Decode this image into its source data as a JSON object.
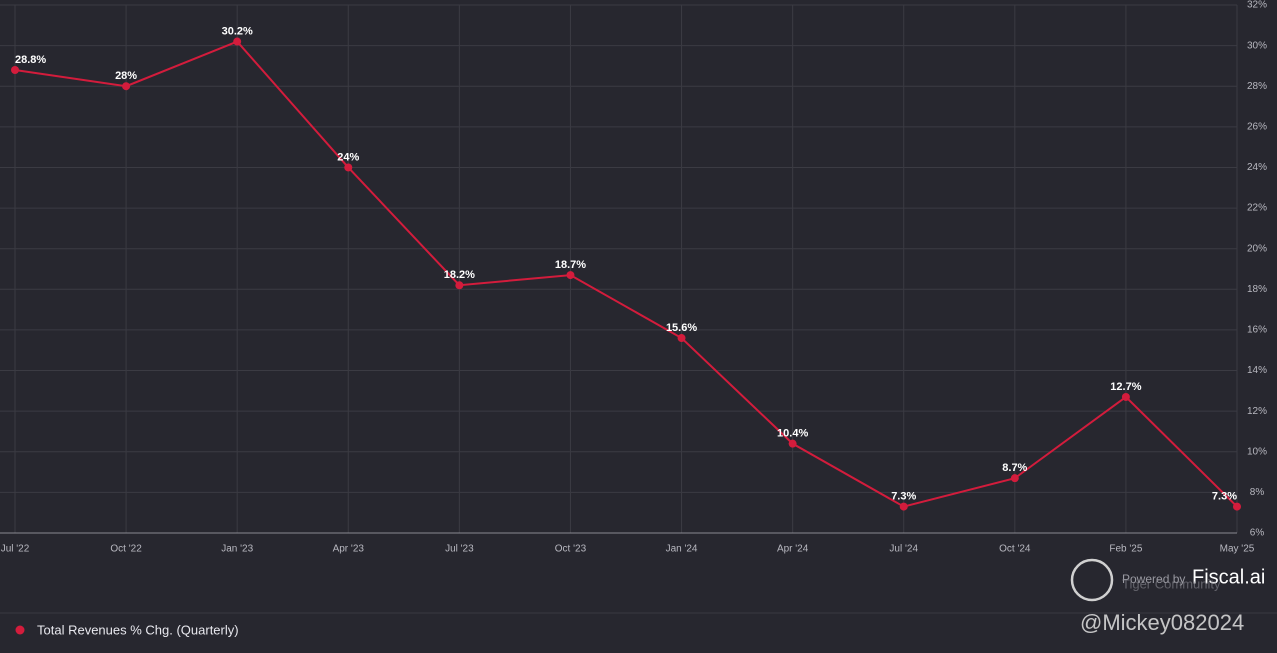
{
  "chart_data": {
    "type": "line",
    "categories": [
      "Jul '22",
      "Oct '22",
      "Jan '23",
      "Apr '23",
      "Jul '23",
      "Oct '23",
      "Jan '24",
      "Apr '24",
      "Jul '24",
      "Oct '24",
      "Feb '25",
      "May '25"
    ],
    "series": [
      {
        "name": "Total Revenues % Chg. (Quarterly)",
        "color": "#d31c3c",
        "values": [
          28.8,
          28,
          30.2,
          24,
          18.2,
          18.7,
          15.6,
          10.4,
          7.3,
          8.7,
          12.7,
          7.3
        ],
        "value_labels": [
          "28.8%",
          "28%",
          "30.2%",
          "24%",
          "18.2%",
          "18.7%",
          "15.6%",
          "10.4%",
          "7.3%",
          "8.7%",
          "12.7%",
          "7.3%"
        ]
      }
    ],
    "ylim": [
      6,
      32
    ],
    "yticks": [
      {
        "value": 6,
        "label": "6%"
      },
      {
        "value": 8,
        "label": "8%"
      },
      {
        "value": 10,
        "label": "10%"
      },
      {
        "value": 12,
        "label": "12%"
      },
      {
        "value": 14,
        "label": "14%"
      },
      {
        "value": 16,
        "label": "16%"
      },
      {
        "value": 18,
        "label": "18%"
      },
      {
        "value": 20,
        "label": "20%"
      },
      {
        "value": 22,
        "label": "22%"
      },
      {
        "value": 24,
        "label": "24%"
      },
      {
        "value": 26,
        "label": "26%"
      },
      {
        "value": 28,
        "label": "28%"
      },
      {
        "value": 30,
        "label": "30%"
      },
      {
        "value": 32,
        "label": "32%"
      }
    ],
    "grid": true,
    "watermark": {
      "powered": "Powered by",
      "brand": "Fiscal.ai",
      "community": "Tiger Community",
      "user": "@Mickey082024"
    }
  }
}
